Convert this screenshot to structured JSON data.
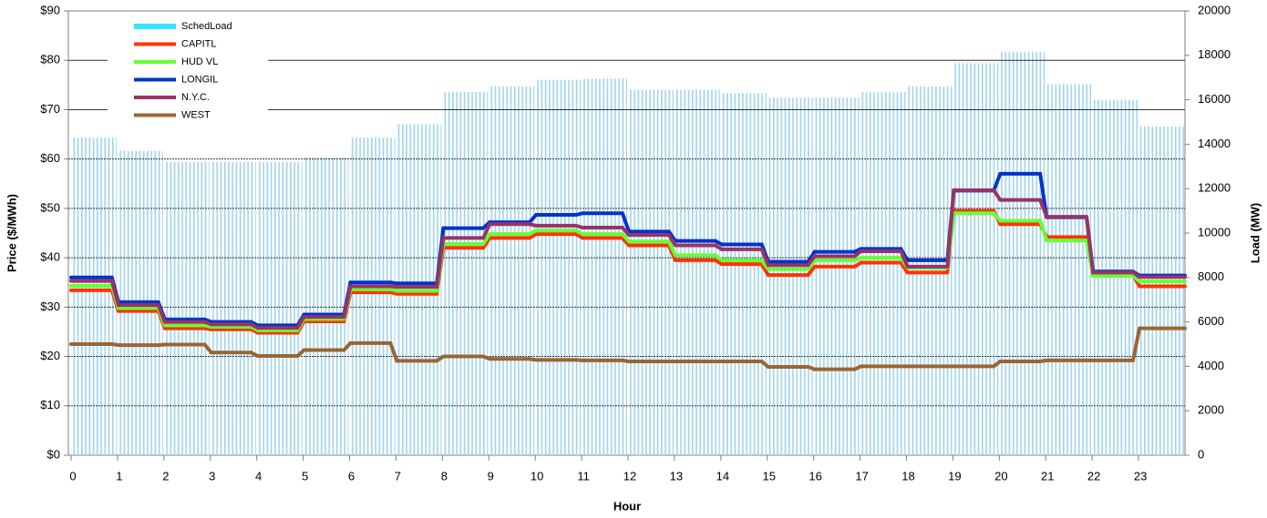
{
  "chart_data": {
    "type": "step-line-bar",
    "xlabel": "Hour",
    "ylabel": "Price ($/MWh)",
    "y2label": "Load (MW)",
    "xlim": [
      0,
      24
    ],
    "xticks": [
      0,
      1,
      2,
      3,
      4,
      5,
      6,
      7,
      8,
      9,
      10,
      11,
      12,
      13,
      14,
      15,
      16,
      17,
      18,
      19,
      20,
      21,
      22,
      23
    ],
    "ylim": [
      0,
      90
    ],
    "yticks": [
      {
        "value": 0,
        "label": "$0"
      },
      {
        "value": 10,
        "label": "$10"
      },
      {
        "value": 20,
        "label": "$20"
      },
      {
        "value": 30,
        "label": "$30"
      },
      {
        "value": 40,
        "label": "$40"
      },
      {
        "value": 50,
        "label": "$50"
      },
      {
        "value": 60,
        "label": "$60"
      },
      {
        "value": 70,
        "label": "$70"
      },
      {
        "value": 80,
        "label": "$80"
      },
      {
        "value": 90,
        "label": "$90"
      }
    ],
    "y2lim": [
      0,
      20000
    ],
    "y2ticks": [
      0,
      2000,
      4000,
      6000,
      8000,
      10000,
      12000,
      14000,
      16000,
      18000,
      20000
    ],
    "grid": true,
    "legend": "upper left",
    "series": [
      {
        "name": "SchedLoad",
        "color": "#33e6ff",
        "bar_color": "#9fd3ea",
        "axis": "y2",
        "kind": "bar",
        "values": [
          14300,
          13700,
          13200,
          13200,
          13200,
          13400,
          14300,
          14900,
          16350,
          16600,
          16900,
          16950,
          16450,
          16450,
          16300,
          16100,
          16100,
          16350,
          16600,
          17650,
          18150,
          16700,
          16000,
          14800
        ]
      },
      {
        "name": "CAPITL",
        "color": "#ff3300",
        "values": [
          33.4,
          29.2,
          25.7,
          25.5,
          24.8,
          27.1,
          33.0,
          32.7,
          42.0,
          44.0,
          44.8,
          44.0,
          42.5,
          39.5,
          38.7,
          36.5,
          38.2,
          39.0,
          37.0,
          49.5,
          46.8,
          44.2,
          36.5,
          34.2
        ]
      },
      {
        "name": "HUD VL",
        "color": "#66ff33",
        "values": [
          34.3,
          29.8,
          26.3,
          26.0,
          25.3,
          27.6,
          33.6,
          33.3,
          42.8,
          44.8,
          45.5,
          44.8,
          43.3,
          40.5,
          39.5,
          37.7,
          39.5,
          40.0,
          38.0,
          49.0,
          47.5,
          43.5,
          36.3,
          35.2
        ]
      },
      {
        "name": "LONGIL",
        "color": "#0033cc",
        "values": [
          36.0,
          31.0,
          27.5,
          27.0,
          26.3,
          28.5,
          35.0,
          34.8,
          46.0,
          47.2,
          48.7,
          49.0,
          45.3,
          43.4,
          42.7,
          39.2,
          41.2,
          41.8,
          39.5,
          53.6,
          57.0,
          48.2,
          37.2,
          36.4
        ]
      },
      {
        "name": "N.Y.C.",
        "color": "#993366",
        "values": [
          35.3,
          30.4,
          27.0,
          26.5,
          25.8,
          28.0,
          34.2,
          34.1,
          44.0,
          46.8,
          46.5,
          46.1,
          44.6,
          42.5,
          41.7,
          38.5,
          40.3,
          41.3,
          38.2,
          53.7,
          51.7,
          48.3,
          37.0,
          36.1
        ]
      },
      {
        "name": "WEST",
        "color": "#996633",
        "values": [
          22.5,
          22.3,
          22.4,
          20.8,
          20.1,
          21.3,
          22.7,
          19.1,
          20.0,
          19.5,
          19.3,
          19.2,
          19.0,
          19.0,
          19.0,
          17.9,
          17.4,
          18.0,
          18.0,
          18.0,
          19.0,
          19.2,
          19.2,
          25.7
        ]
      }
    ]
  }
}
